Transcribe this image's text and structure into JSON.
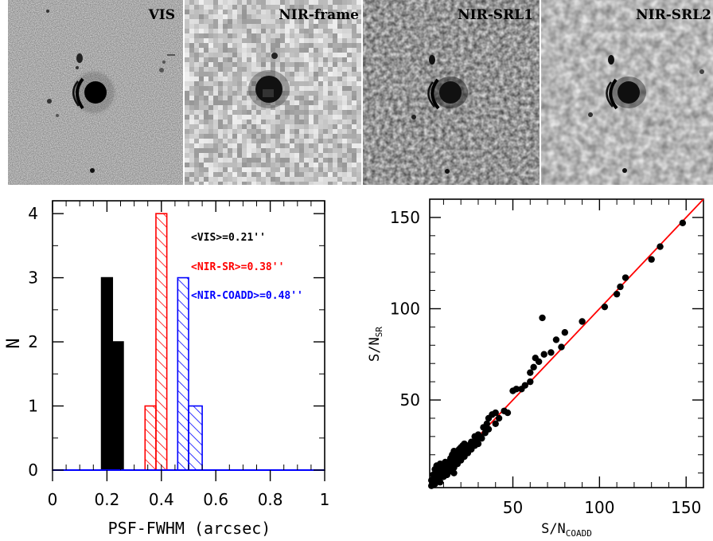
{
  "image_panels": [
    {
      "label": "VIS"
    },
    {
      "label": "NIR-frame"
    },
    {
      "label": "NIR-SRL1"
    },
    {
      "label": "NIR-SRL2"
    }
  ],
  "chart_data": [
    {
      "type": "histogram",
      "xlabel": "PSF-FWHM (arcsec)",
      "ylabel": "N",
      "xlim": [
        0,
        1
      ],
      "ylim": [
        0,
        4.2
      ],
      "xticks": [
        0,
        0.2,
        0.4,
        0.6,
        0.8,
        1
      ],
      "xtick_labels": [
        "0",
        "0.2",
        "0.4",
        "0.6",
        "0.8",
        "1"
      ],
      "yticks": [
        0,
        1,
        2,
        3,
        4
      ],
      "ytick_labels": [
        "0",
        "1",
        "2",
        "3",
        "4"
      ],
      "bin_width": 0.04,
      "series": [
        {
          "name": "VIS",
          "color": "#000000",
          "fill": "solid",
          "bins": [
            {
              "x0": 0.18,
              "x1": 0.22,
              "count": 3
            },
            {
              "x0": 0.22,
              "x1": 0.26,
              "count": 2
            }
          ]
        },
        {
          "name": "NIR-SR",
          "color": "#ff0000",
          "fill": "hatched",
          "bins": [
            {
              "x0": 0.34,
              "x1": 0.38,
              "count": 1
            },
            {
              "x0": 0.38,
              "x1": 0.42,
              "count": 4
            }
          ]
        },
        {
          "name": "NIR-COADD",
          "color": "#0000ff",
          "fill": "hatched",
          "bins": [
            {
              "x0": 0.46,
              "x1": 0.5,
              "count": 3
            },
            {
              "x0": 0.5,
              "x1": 0.55,
              "count": 1
            }
          ]
        }
      ],
      "annotations": [
        {
          "text": "<VIS>=0.21''",
          "color": "#000000"
        },
        {
          "text": "<NIR-SR>=0.38''",
          "color": "#ff0000"
        },
        {
          "text": "<NIR-COADD>=0.48''",
          "color": "#0000ff"
        }
      ]
    },
    {
      "type": "scatter",
      "xlabel": "S/N",
      "xlabel_sub": "COADD",
      "ylabel": "S/N",
      "ylabel_sub": "SR",
      "xlim": [
        2,
        160
      ],
      "ylim": [
        2,
        160
      ],
      "xticks": [
        50,
        100,
        150
      ],
      "xtick_labels": [
        "50",
        "100",
        "150"
      ],
      "yticks": [
        50,
        100,
        150
      ],
      "ytick_labels": [
        "50",
        "100",
        "150"
      ],
      "line": {
        "color": "#ff0000",
        "from": [
          2,
          2
        ],
        "to": [
          160,
          160
        ]
      },
      "points": [
        [
          3,
          3
        ],
        [
          4,
          5
        ],
        [
          5,
          4
        ],
        [
          6,
          7
        ],
        [
          7,
          6
        ],
        [
          8,
          9
        ],
        [
          9,
          8
        ],
        [
          10,
          11
        ],
        [
          11,
          10
        ],
        [
          12,
          13
        ],
        [
          13,
          12
        ],
        [
          4,
          9
        ],
        [
          5,
          12
        ],
        [
          6,
          14
        ],
        [
          7,
          13
        ],
        [
          8,
          15
        ],
        [
          9,
          14
        ],
        [
          10,
          15
        ],
        [
          11,
          16
        ],
        [
          12,
          15
        ],
        [
          13,
          16
        ],
        [
          14,
          14
        ],
        [
          15,
          17
        ],
        [
          16,
          15
        ],
        [
          17,
          18
        ],
        [
          18,
          17
        ],
        [
          19,
          20
        ],
        [
          20,
          19
        ],
        [
          21,
          22
        ],
        [
          22,
          21
        ],
        [
          14,
          18
        ],
        [
          15,
          20
        ],
        [
          16,
          22
        ],
        [
          17,
          21
        ],
        [
          18,
          22
        ],
        [
          19,
          23
        ],
        [
          20,
          24
        ],
        [
          21,
          25
        ],
        [
          22,
          26
        ],
        [
          23,
          24
        ],
        [
          24,
          25
        ],
        [
          25,
          24
        ],
        [
          26,
          27
        ],
        [
          27,
          26
        ],
        [
          28,
          30
        ],
        [
          29,
          28
        ],
        [
          30,
          31
        ],
        [
          31,
          30
        ],
        [
          12,
          10
        ],
        [
          14,
          11
        ],
        [
          16,
          13
        ],
        [
          18,
          15
        ],
        [
          20,
          17
        ],
        [
          22,
          19
        ],
        [
          24,
          21
        ],
        [
          26,
          23
        ],
        [
          28,
          25
        ],
        [
          8,
          5
        ],
        [
          10,
          8
        ],
        [
          12,
          9
        ],
        [
          16,
          10
        ],
        [
          6,
          10
        ],
        [
          7,
          11
        ],
        [
          5,
          8
        ],
        [
          3,
          6
        ],
        [
          33,
          35
        ],
        [
          35,
          37
        ],
        [
          36,
          40
        ],
        [
          38,
          42
        ],
        [
          40,
          43
        ],
        [
          40,
          37
        ],
        [
          42,
          40
        ],
        [
          36,
          34
        ],
        [
          34,
          32
        ],
        [
          32,
          29
        ],
        [
          30,
          26
        ],
        [
          45,
          44
        ],
        [
          47,
          43
        ],
        [
          50,
          55
        ],
        [
          52,
          56
        ],
        [
          55,
          56
        ],
        [
          57,
          58
        ],
        [
          60,
          60
        ],
        [
          60,
          65
        ],
        [
          62,
          68
        ],
        [
          63,
          73
        ],
        [
          65,
          71
        ],
        [
          67,
          95
        ],
        [
          68,
          75
        ],
        [
          72,
          76
        ],
        [
          75,
          83
        ],
        [
          78,
          79
        ],
        [
          80,
          87
        ],
        [
          90,
          93
        ],
        [
          103,
          101
        ],
        [
          110,
          108
        ],
        [
          112,
          112
        ],
        [
          115,
          117
        ],
        [
          130,
          127
        ],
        [
          135,
          134
        ],
        [
          148,
          147
        ]
      ]
    }
  ]
}
